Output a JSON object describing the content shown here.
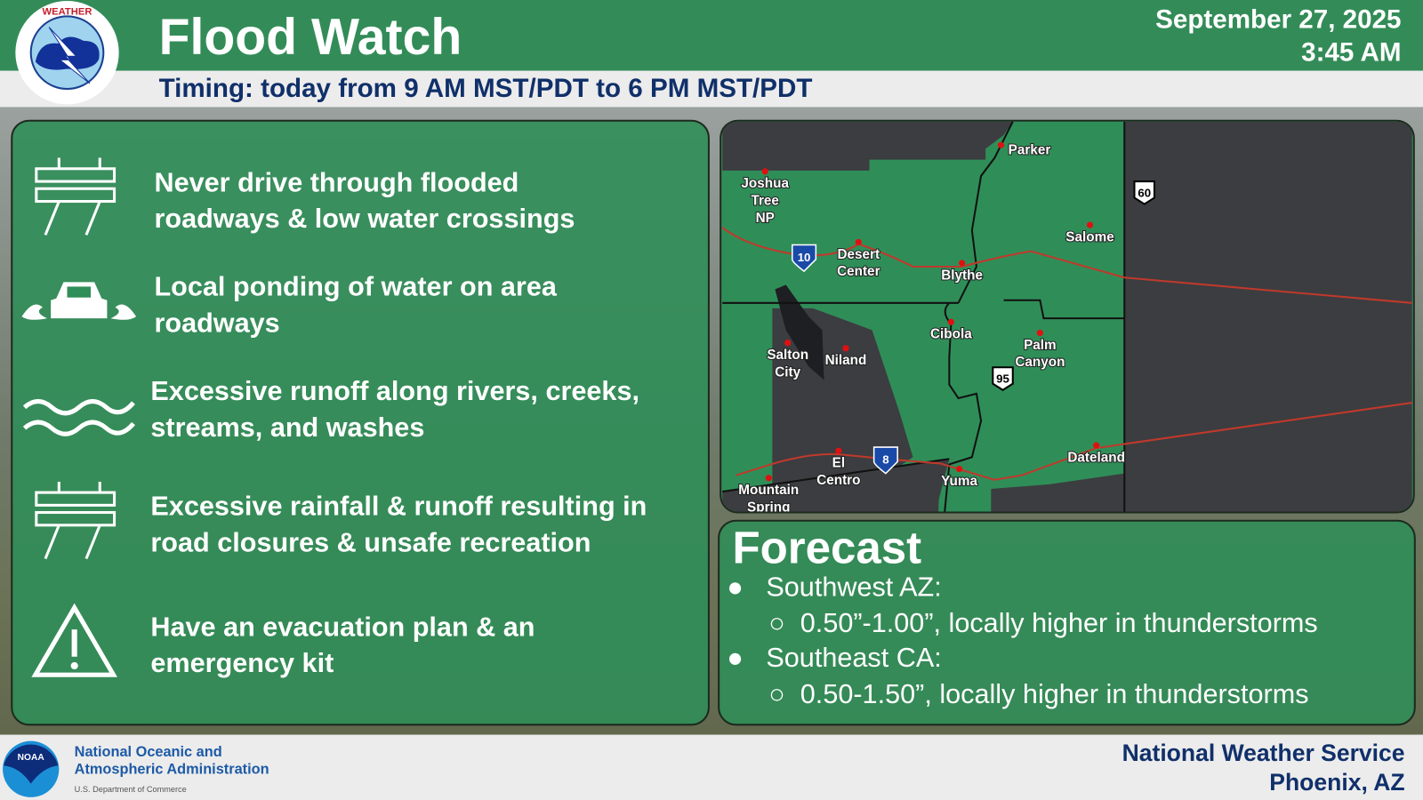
{
  "header": {
    "title": "Flood Watch",
    "date": "September 27, 2025",
    "time": "3:45 AM",
    "timing": "Timing: today from 9 AM MST/PDT to 6 PM MST/PDT",
    "logo_text": "NATIONAL WEATHER SERVICE"
  },
  "impacts": [
    {
      "icon": "road-barrier-icon",
      "lines": [
        "Never drive through flooded",
        "roadways & low water crossings"
      ]
    },
    {
      "icon": "car-flooding-icon",
      "lines": [
        "Local ponding of water on area",
        "roadways"
      ]
    },
    {
      "icon": "water-waves-icon",
      "lines": [
        "Excessive runoff along rivers, creeks,",
        "streams, and washes"
      ]
    },
    {
      "icon": "road-barrier-icon",
      "lines": [
        "Excessive rainfall & runoff resulting in",
        "road closures & unsafe recreation"
      ]
    },
    {
      "icon": "warning-triangle-icon",
      "lines": [
        "Have an evacuation plan & an",
        "emergency kit"
      ]
    }
  ],
  "map": {
    "watch_color": "#2f8e58",
    "cities": [
      "Parker",
      "Joshua Tree NP",
      "Desert Center",
      "Blythe",
      "Salome",
      "Cibola",
      "Palm Canyon",
      "Salton City",
      "Niland",
      "El Centro",
      "Mountain Spring",
      "Yuma",
      "Dateland"
    ],
    "shields": [
      "10",
      "8",
      "95",
      "60"
    ]
  },
  "forecast": {
    "heading": "Forecast",
    "regions": [
      {
        "name": "Southwest AZ:",
        "amount": "0.50”-1.00”, locally higher in thunderstorms"
      },
      {
        "name": "Southeast CA:",
        "amount": "0.50-1.50”, locally higher in thunderstorms"
      }
    ]
  },
  "footer": {
    "noaa_line1": "National Oceanic and",
    "noaa_line2": "Atmospheric Administration",
    "noaa_dept": "U.S. Department of Commerce",
    "noaa_logo_text": "NOAA",
    "office_line1": "National Weather Service",
    "office_line2": "Phoenix, AZ"
  }
}
